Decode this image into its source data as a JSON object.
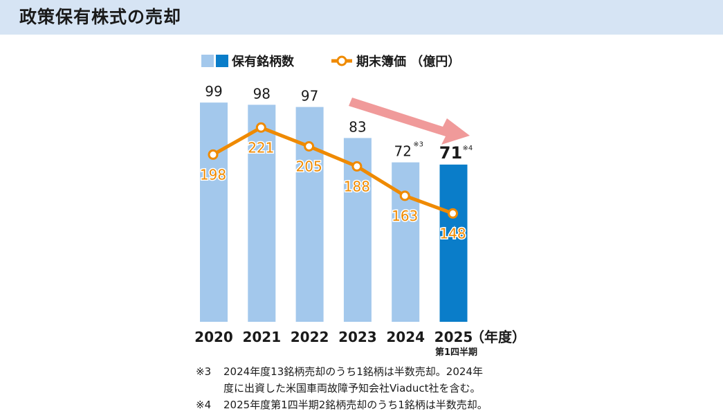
{
  "header": {
    "title": "政策保有株式の売却"
  },
  "colors": {
    "header_bg": "#d6e4f4",
    "bar_light": "#a3c8ec",
    "bar_dark": "#0a7dc9",
    "line": "#ef8a00",
    "arrow": "#f09a9a"
  },
  "chart_data": {
    "type": "bar",
    "categories": [
      "2020",
      "2021",
      "2022",
      "2023",
      "2024",
      "2025"
    ],
    "category_sublabels": [
      "",
      "",
      "",
      "",
      "",
      "第1四半期"
    ],
    "x_unit": "（年度）",
    "series": [
      {
        "name": "保有銘柄数",
        "type": "bar",
        "values": [
          99,
          98,
          97,
          83,
          72,
          71
        ],
        "label_notes": [
          "",
          "",
          "",
          "",
          "※3",
          "※4"
        ]
      },
      {
        "name": "期末簿価 （億円）",
        "type": "line",
        "values": [
          198,
          221,
          205,
          188,
          163,
          148
        ]
      }
    ],
    "legend": [
      "保有銘柄数",
      "期末簿価 （億円）"
    ],
    "annotations": [
      "downward trend arrow"
    ],
    "ylim_bars": [
      0,
      100
    ],
    "ylim_line": [
      0,
      260
    ]
  },
  "footnotes": [
    {
      "mark": "※3",
      "lines": [
        "2024年度13銘柄売却のうち1銘柄は半数売却。2024年",
        "度に出資した米国車両故障予知会社Viaduct社を含む。"
      ]
    },
    {
      "mark": "※4",
      "lines": [
        "2025年度第1四半期2銘柄売却のうち1銘柄は半数売却。"
      ]
    }
  ]
}
